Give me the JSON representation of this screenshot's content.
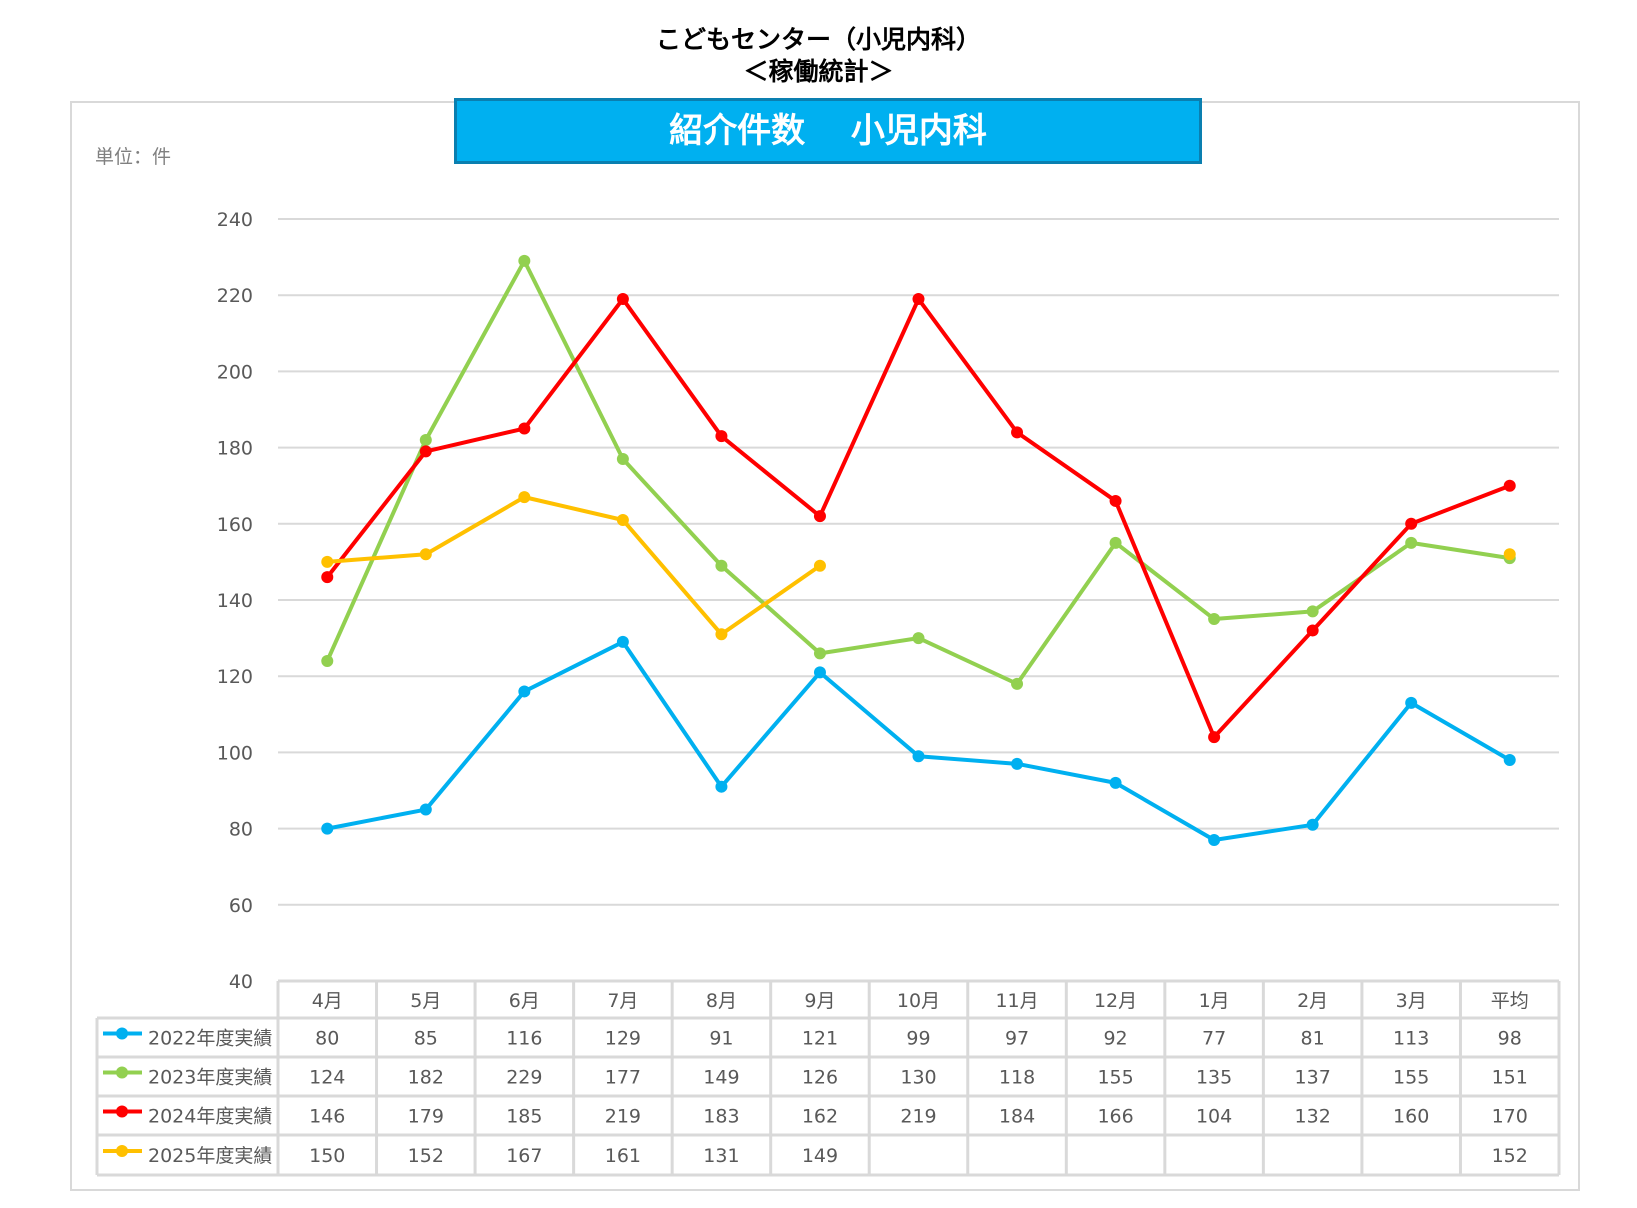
{
  "header": {
    "title_line1": "こどもセンター（小児内科）",
    "title_line2": "＜稼働統計＞"
  },
  "chart_data": {
    "type": "line",
    "title": "紹介件数　 小児内科",
    "unit_label": "単位：件",
    "categories": [
      "4月",
      "5月",
      "6月",
      "7月",
      "8月",
      "9月",
      "10月",
      "11月",
      "12月",
      "1月",
      "2月",
      "3月",
      "平均"
    ],
    "ylim": [
      40,
      240
    ],
    "yticks": [
      40,
      60,
      80,
      100,
      120,
      140,
      160,
      180,
      200,
      220,
      240
    ],
    "grid": true,
    "legend": "data-table-bottom",
    "series": [
      {
        "name": "2022年度実績",
        "color": "#00b0f0",
        "values": [
          80,
          85,
          116,
          129,
          91,
          121,
          99,
          97,
          92,
          77,
          81,
          113,
          98
        ]
      },
      {
        "name": "2023年度実績",
        "color": "#92d050",
        "values": [
          124,
          182,
          229,
          177,
          149,
          126,
          130,
          118,
          155,
          135,
          137,
          155,
          151
        ]
      },
      {
        "name": "2024年度実績",
        "color": "#ff0000",
        "values": [
          146,
          179,
          185,
          219,
          183,
          162,
          219,
          184,
          166,
          104,
          132,
          160,
          170
        ]
      },
      {
        "name": "2025年度実績",
        "color": "#ffc000",
        "values": [
          150,
          152,
          167,
          161,
          131,
          149,
          null,
          null,
          null,
          null,
          null,
          null,
          152
        ]
      }
    ]
  }
}
